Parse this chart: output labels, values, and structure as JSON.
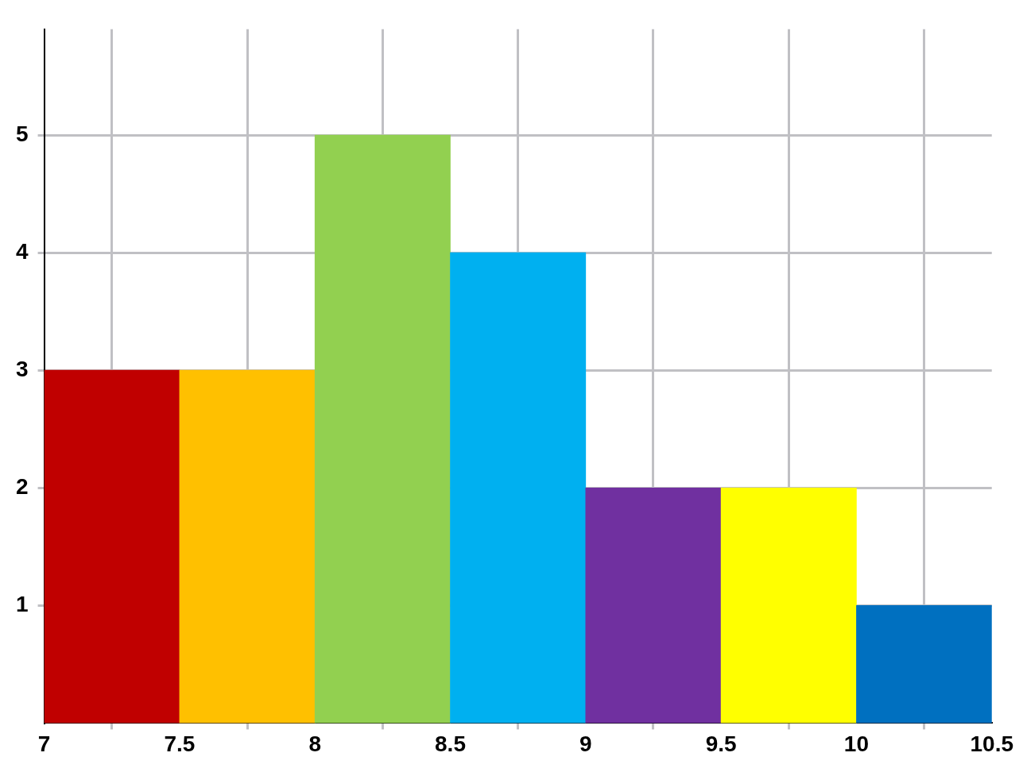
{
  "chart_data": {
    "type": "histogram",
    "bins": [
      7,
      7.5,
      8,
      8.5,
      9,
      9.5,
      10,
      10.5
    ],
    "values": [
      3,
      3,
      5,
      4,
      2,
      2,
      1
    ],
    "colors": [
      "#c00000",
      "#ffc000",
      "#92d050",
      "#00b0f0",
      "#7030a0",
      "#ffff00",
      "#0070c0"
    ],
    "xlim": [
      7,
      10.5
    ],
    "xticks": [
      7,
      7.5,
      8,
      8.5,
      9,
      9.5,
      10,
      10.5
    ],
    "ylim": [
      0,
      5.9
    ],
    "yticks": [
      1,
      2,
      3,
      4,
      5
    ],
    "grid": true
  }
}
